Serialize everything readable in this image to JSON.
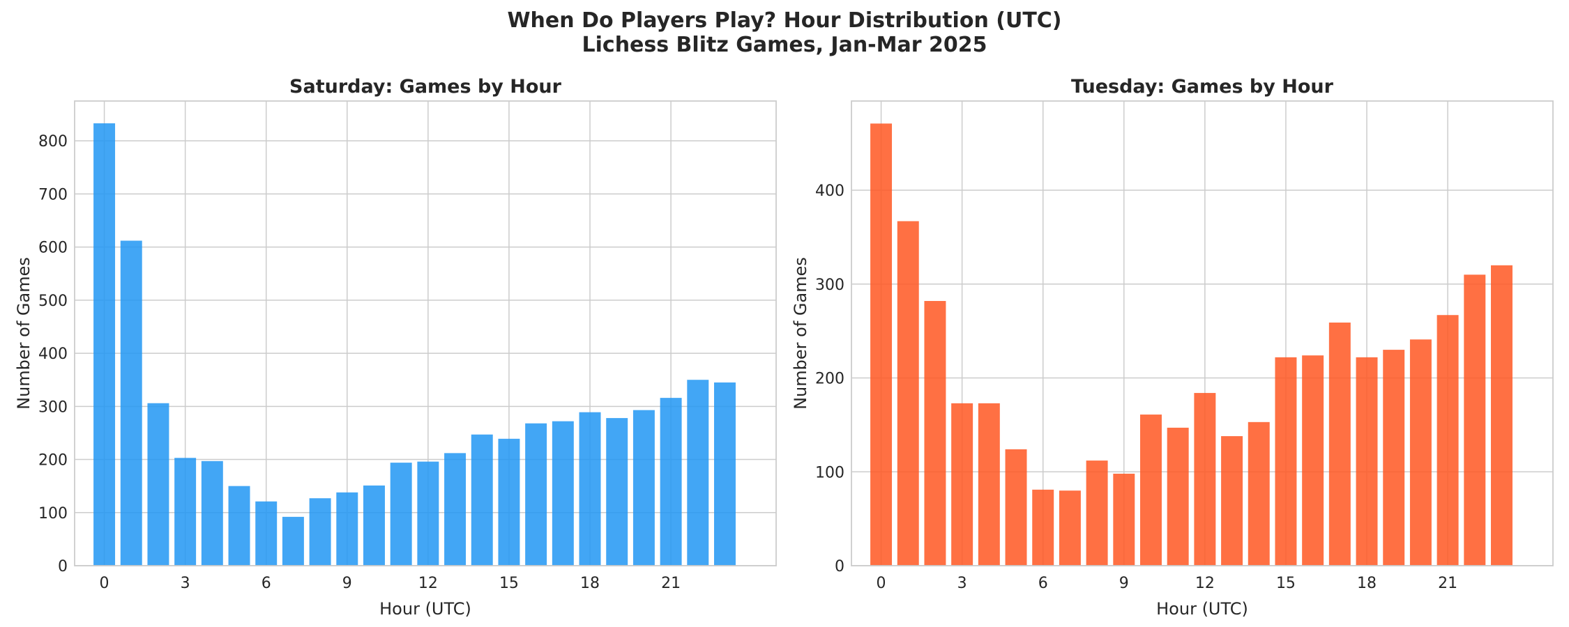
{
  "figure": {
    "title_line1": "When Do Players Play? Hour Distribution (UTC)",
    "title_line2": "Lichess Blitz Games, Jan-Mar 2025"
  },
  "chart_data": [
    {
      "type": "bar",
      "title": "Saturday: Games by Hour",
      "xlabel": "Hour (UTC)",
      "ylabel": "Number of Games",
      "color": "#2196f3",
      "categories": [
        0,
        1,
        2,
        3,
        4,
        5,
        6,
        7,
        8,
        9,
        10,
        11,
        12,
        13,
        14,
        15,
        16,
        17,
        18,
        19,
        20,
        21,
        22,
        23
      ],
      "values": [
        833,
        612,
        306,
        203,
        197,
        150,
        121,
        92,
        127,
        138,
        151,
        194,
        196,
        212,
        247,
        239,
        268,
        272,
        289,
        278,
        293,
        316,
        350,
        345
      ],
      "xticks": [
        0,
        3,
        6,
        9,
        12,
        15,
        18,
        21
      ],
      "yticks": [
        0,
        100,
        200,
        300,
        400,
        500,
        600,
        700,
        800
      ],
      "xlim": [
        -1.1,
        24.9
      ],
      "ylim": [
        0,
        875
      ],
      "grid": true
    },
    {
      "type": "bar",
      "title": "Tuesday: Games by Hour",
      "xlabel": "Hour (UTC)",
      "ylabel": "Number of Games",
      "color": "#ff5722",
      "categories": [
        0,
        1,
        2,
        3,
        4,
        5,
        6,
        7,
        8,
        9,
        10,
        11,
        12,
        13,
        14,
        15,
        16,
        17,
        18,
        19,
        20,
        21,
        22,
        23
      ],
      "values": [
        471,
        367,
        282,
        173,
        173,
        124,
        81,
        80,
        112,
        98,
        161,
        147,
        184,
        138,
        153,
        222,
        224,
        259,
        222,
        230,
        241,
        267,
        310,
        320
      ],
      "xticks": [
        0,
        3,
        6,
        9,
        12,
        15,
        18,
        21
      ],
      "yticks": [
        0,
        100,
        200,
        300,
        400
      ],
      "xlim": [
        -1.1,
        24.9
      ],
      "ylim": [
        0,
        495
      ],
      "grid": true
    }
  ]
}
